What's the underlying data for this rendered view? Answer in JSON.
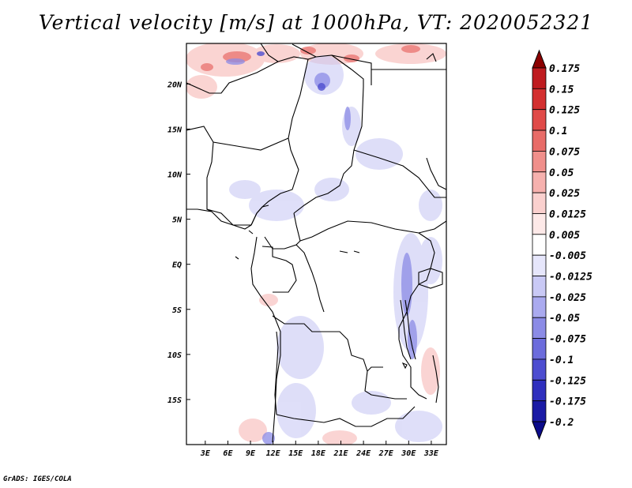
{
  "title": "Vertical velocity [m/s] at 1000hPa, VT: 2020052321",
  "credit": "GrADS: IGES/COLA",
  "map": {
    "lat_ticks": [
      {
        "label": "20N",
        "lat": 20
      },
      {
        "label": "15N",
        "lat": 15
      },
      {
        "label": "10N",
        "lat": 10
      },
      {
        "label": "5N",
        "lat": 5
      },
      {
        "label": "EQ",
        "lat": 0
      },
      {
        "label": "5S",
        "lat": -5
      },
      {
        "label": "10S",
        "lat": -10
      },
      {
        "label": "15S",
        "lat": -15
      }
    ],
    "lon_ticks": [
      {
        "label": "3E",
        "lon": 3
      },
      {
        "label": "6E",
        "lon": 6
      },
      {
        "label": "9E",
        "lon": 9
      },
      {
        "label": "12E",
        "lon": 12
      },
      {
        "label": "15E",
        "lon": 15
      },
      {
        "label": "18E",
        "lon": 18
      },
      {
        "label": "21E",
        "lon": 21
      },
      {
        "label": "24E",
        "lon": 24
      },
      {
        "label": "27E",
        "lon": 27
      },
      {
        "label": "30E",
        "lon": 30
      },
      {
        "label": "33E",
        "lon": 33
      }
    ],
    "lon_range": [
      0.5,
      35
    ],
    "lat_range": [
      -20,
      24.5
    ]
  },
  "colorbar": {
    "levels": [
      {
        "label": "0.175",
        "color": "#a50f15"
      },
      {
        "label": "0.15",
        "color": "#bf1b1f"
      },
      {
        "label": "0.125",
        "color": "#d32f2f"
      },
      {
        "label": "0.1",
        "color": "#e04a48"
      },
      {
        "label": "0.075",
        "color": "#e86c68"
      },
      {
        "label": "0.05",
        "color": "#f08f8b"
      },
      {
        "label": "0.025",
        "color": "#f6b1ae"
      },
      {
        "label": "0.0125",
        "color": "#fad0ce"
      },
      {
        "label": "0.005",
        "color": "#fde9e8"
      },
      {
        "label": "-0.005",
        "color": "#ffffff"
      },
      {
        "label": "-0.0125",
        "color": "#e6e6fb"
      },
      {
        "label": "-0.025",
        "color": "#c9c9f5"
      },
      {
        "label": "-0.05",
        "color": "#aaaaef"
      },
      {
        "label": "-0.075",
        "color": "#8b8be6"
      },
      {
        "label": "-0.1",
        "color": "#6c6cdc"
      },
      {
        "label": "-0.125",
        "color": "#4d4dd0"
      },
      {
        "label": "-0.175",
        "color": "#2f2fbe"
      },
      {
        "label": "-0.2",
        "color": "#1a1aa5"
      }
    ],
    "top_arrow_color": "#8b0000",
    "bottom_arrow_color": "#0b0b8a"
  }
}
